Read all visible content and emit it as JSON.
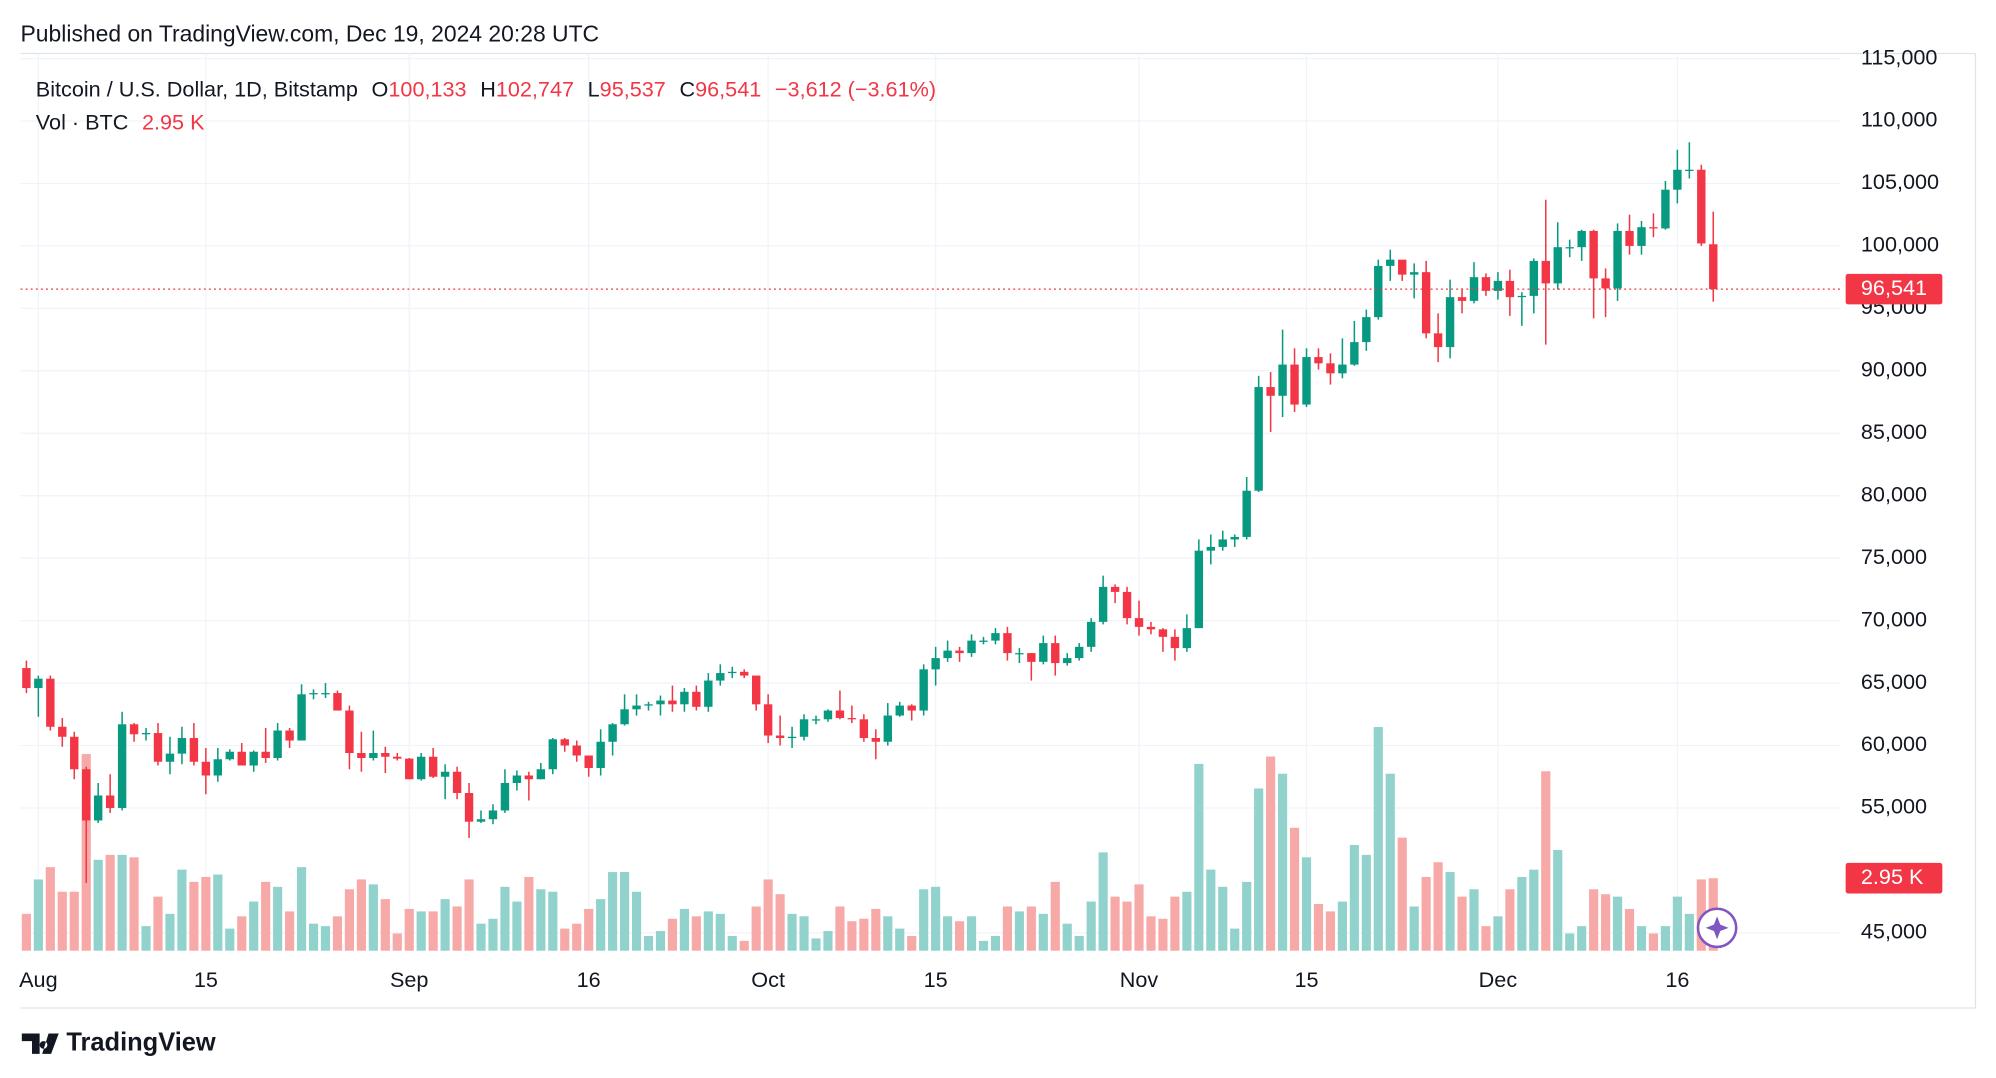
{
  "chart_data": {
    "type": "candlestick",
    "title": "Published on TradingView.com, Dec 19, 2024 20:28 UTC",
    "brand": "TradingView",
    "legend": {
      "symbol": "Bitcoin / U.S. Dollar, 1D, Bitstamp",
      "fields": [
        {
          "label": "O",
          "value": "100,133"
        },
        {
          "label": "H",
          "value": "102,747"
        },
        {
          "label": "L",
          "value": "95,537"
        },
        {
          "label": "C",
          "value": "96,541"
        }
      ],
      "change": "−3,612 (−3.61%)",
      "volume_title": "Vol · BTC",
      "volume_value": "2.95 K"
    },
    "up_color": "#089981",
    "down_color": "#f23645",
    "volume_up_color": "#92d2cc",
    "volume_down_color": "#f7a9a7",
    "grid": true,
    "categories": [
      null,
      "Aug",
      null,
      null,
      null,
      null,
      null,
      null,
      null,
      null,
      null,
      null,
      null,
      null,
      null,
      "15",
      null,
      null,
      null,
      null,
      null,
      null,
      null,
      null,
      null,
      null,
      null,
      null,
      null,
      null,
      null,
      null,
      "Sep",
      null,
      null,
      null,
      null,
      null,
      null,
      null,
      null,
      null,
      null,
      null,
      null,
      null,
      null,
      "16",
      null,
      null,
      null,
      null,
      null,
      null,
      null,
      null,
      null,
      null,
      null,
      null,
      null,
      null,
      "Oct",
      null,
      null,
      null,
      null,
      null,
      null,
      null,
      null,
      null,
      null,
      null,
      null,
      null,
      "15",
      null,
      null,
      null,
      null,
      null,
      null,
      null,
      null,
      null,
      null,
      null,
      null,
      null,
      null,
      null,
      null,
      "Nov",
      null,
      null,
      null,
      null,
      null,
      null,
      null,
      null,
      null,
      null,
      null,
      null,
      null,
      "15",
      null,
      null,
      null,
      null,
      null,
      null,
      null,
      null,
      null,
      null,
      null,
      null,
      null,
      null,
      null,
      "Dec",
      null,
      null,
      null,
      null,
      null,
      null,
      null,
      null,
      null,
      null,
      null,
      null,
      null,
      null,
      "16",
      null,
      null,
      null
    ],
    "open": [
      66200,
      64600,
      65350,
      61500,
      60700,
      58100,
      54000,
      56000,
      55000,
      61700,
      60900,
      61000,
      58700,
      59350,
      60600,
      58700,
      57600,
      58900,
      59500,
      58400,
      59500,
      59000,
      61200,
      60400,
      64100,
      64200,
      64200,
      62800,
      59400,
      59000,
      59400,
      59100,
      58950,
      57300,
      59100,
      57500,
      57900,
      56200,
      53900,
      54100,
      54800,
      57000,
      57600,
      57300,
      58100,
      60500,
      60000,
      59200,
      58200,
      60300,
      61700,
      62900,
      63200,
      63300,
      63600,
      63300,
      64300,
      63100,
      65200,
      65800,
      65900,
      65600,
      63300,
      60800,
      60600,
      60700,
      62100,
      62100,
      62800,
      62200,
      62100,
      60600,
      60300,
      62400,
      63200,
      62800,
      66100,
      67000,
      67600,
      67400,
      68400,
      68400,
      69000,
      67400,
      67400,
      66700,
      68200,
      66600,
      67000,
      67900,
      69900,
      72700,
      72300,
      70200,
      69500,
      69300,
      68700,
      67800,
      69400,
      75600,
      75900,
      76500,
      76700,
      80400,
      88700,
      88000,
      90500,
      87300,
      91100,
      90600,
      89800,
      90500,
      92300,
      94300,
      98400,
      98900,
      97700,
      97900,
      93000,
      91900,
      95900,
      95600,
      97500,
      96400,
      97200,
      95900,
      96000,
      98800,
      97000,
      99900,
      99900,
      101200,
      97400,
      96600,
      101200,
      100000,
      101500,
      101400,
      104500,
      106100,
      106100,
      100133
    ],
    "high": [
      66800,
      65600,
      65600,
      62200,
      61100,
      58300,
      57000,
      57700,
      62700,
      61800,
      61400,
      61800,
      60700,
      61500,
      61800,
      59800,
      59800,
      59700,
      60200,
      59600,
      61400,
      61800,
      61400,
      64900,
      64500,
      65000,
      64400,
      63200,
      61100,
      61200,
      59900,
      59400,
      59000,
      59400,
      59800,
      58500,
      58300,
      57000,
      54800,
      55300,
      58100,
      58000,
      57900,
      58600,
      60600,
      60600,
      60400,
      59200,
      61300,
      61800,
      64100,
      64100,
      63500,
      64000,
      64800,
      64600,
      64800,
      65800,
      66500,
      66300,
      66100,
      65600,
      64100,
      62400,
      61500,
      62500,
      62400,
      62900,
      64400,
      63200,
      62500,
      61300,
      63400,
      63500,
      63300,
      66500,
      67900,
      68400,
      67900,
      68900,
      68700,
      69400,
      69500,
      67800,
      67400,
      68800,
      68800,
      67400,
      68200,
      70200,
      73600,
      72900,
      72700,
      71600,
      69900,
      69400,
      69300,
      70500,
      76500,
      76900,
      77200,
      76900,
      81500,
      89600,
      89900,
      93300,
      91800,
      91800,
      91800,
      91400,
      92600,
      94000,
      94900,
      98900,
      99700,
      98800,
      98600,
      98800,
      94600,
      97300,
      96600,
      98700,
      97800,
      97900,
      98100,
      96300,
      99000,
      103700,
      101900,
      100500,
      101300,
      101300,
      98200,
      101800,
      102500,
      102000,
      102600,
      105200,
      107700,
      108300,
      106500,
      102747
    ],
    "low": [
      64200,
      62300,
      61200,
      59900,
      57300,
      49000,
      53800,
      54600,
      54800,
      60300,
      60400,
      58400,
      57700,
      58500,
      58400,
      56100,
      57100,
      58800,
      58400,
      57900,
      58600,
      58800,
      59800,
      60400,
      63700,
      63800,
      62800,
      58100,
      57900,
      58800,
      57800,
      58800,
      57300,
      57200,
      57400,
      55700,
      55700,
      52600,
      53800,
      53700,
      54600,
      56400,
      55600,
      57300,
      57700,
      59500,
      58700,
      57500,
      57600,
      59200,
      61600,
      62400,
      62800,
      62400,
      62700,
      62700,
      62800,
      62700,
      64800,
      65400,
      65400,
      62800,
      60200,
      60000,
      59800,
      60400,
      61700,
      61900,
      62100,
      61800,
      60300,
      58900,
      60000,
      62300,
      62000,
      62400,
      64800,
      66700,
      66700,
      67100,
      68100,
      68100,
      66800,
      66600,
      65200,
      66500,
      65600,
      66400,
      66800,
      67500,
      69700,
      71400,
      69700,
      68800,
      68900,
      67500,
      66800,
      67500,
      69400,
      74500,
      75600,
      75900,
      76500,
      80300,
      85100,
      86300,
      86700,
      87100,
      90100,
      88900,
      89400,
      90400,
      91600,
      94100,
      97200,
      97200,
      95800,
      92600,
      90700,
      91000,
      94600,
      95400,
      96000,
      95700,
      94400,
      93600,
      94600,
      92100,
      96500,
      99100,
      98800,
      94200,
      94300,
      95600,
      99300,
      99300,
      100700,
      101300,
      103400,
      105400,
      100000,
      95537
    ],
    "close": [
      64600,
      65350,
      61500,
      60700,
      58100,
      54000,
      56000,
      55000,
      61700,
      60900,
      61000,
      58700,
      59350,
      60600,
      58700,
      57600,
      58900,
      59500,
      58400,
      59500,
      59000,
      61200,
      60400,
      64100,
      64200,
      64200,
      62800,
      59400,
      59000,
      59400,
      59100,
      58950,
      57300,
      59100,
      57500,
      57900,
      56200,
      53900,
      54100,
      54800,
      57000,
      57600,
      57300,
      58100,
      60500,
      60000,
      59200,
      58200,
      60300,
      61700,
      62900,
      63200,
      63300,
      63600,
      63300,
      64300,
      63100,
      65200,
      65800,
      65900,
      65600,
      63300,
      60800,
      60600,
      60700,
      62100,
      62100,
      62800,
      62200,
      62100,
      60600,
      60300,
      62400,
      63200,
      62800,
      66100,
      67000,
      67600,
      67400,
      68400,
      68400,
      69000,
      67400,
      67400,
      66700,
      68200,
      66600,
      67000,
      67900,
      69900,
      72700,
      72300,
      70200,
      69500,
      69300,
      68700,
      67800,
      69400,
      75600,
      75900,
      76500,
      76700,
      80400,
      88700,
      88000,
      90500,
      87300,
      91100,
      90600,
      89800,
      90500,
      92300,
      94300,
      98400,
      98900,
      97700,
      97900,
      93000,
      91900,
      95900,
      95600,
      97500,
      96400,
      97200,
      95900,
      96000,
      98800,
      97000,
      99900,
      99900,
      101200,
      97400,
      96600,
      101200,
      100000,
      101500,
      101400,
      104500,
      106100,
      106100,
      100200,
      96541
    ],
    "volume": [
      1500,
      2900,
      3400,
      2400,
      2400,
      8000,
      3700,
      3900,
      3900,
      3800,
      1000,
      2200,
      1500,
      3300,
      2800,
      3000,
      3100,
      900,
      1400,
      2000,
      2800,
      2600,
      1600,
      3400,
      1100,
      1000,
      1400,
      2500,
      2900,
      2700,
      2100,
      700,
      1700,
      1600,
      1600,
      2100,
      1800,
      2900,
      1100,
      1300,
      2600,
      2000,
      3000,
      2500,
      2400,
      900,
      1100,
      1700,
      2100,
      3200,
      3200,
      2400,
      600,
      800,
      1300,
      1700,
      1400,
      1600,
      1500,
      600,
      400,
      1800,
      2900,
      2300,
      1500,
      1400,
      500,
      800,
      1800,
      1200,
      1300,
      1700,
      1400,
      900,
      600,
      2500,
      2600,
      1400,
      1200,
      1400,
      400,
      600,
      1800,
      1600,
      1800,
      1500,
      2800,
      1100,
      600,
      2000,
      4000,
      2200,
      2000,
      2700,
      1400,
      1300,
      2200,
      2400,
      7600,
      3300,
      2600,
      900,
      2800,
      6600,
      7900,
      7200,
      5000,
      3800,
      1900,
      1600,
      2000,
      4300,
      3900,
      9100,
      7200,
      4600,
      1800,
      3000,
      3600,
      3200,
      2200,
      2500,
      1000,
      1400,
      2500,
      3000,
      3300,
      7300,
      4100,
      700,
      1000,
      2500,
      2300,
      2200,
      1700,
      1000,
      700,
      1000,
      2200,
      1500,
      2900,
      2950
    ],
    "ylim": [
      43570,
      115410
    ],
    "yticks": [
      {
        "value": 45000,
        "label": "45,000"
      },
      {
        "value": 55000,
        "label": "55,000"
      },
      {
        "value": 60000,
        "label": "60,000"
      },
      {
        "value": 65000,
        "label": "65,000"
      },
      {
        "value": 70000,
        "label": "70,000"
      },
      {
        "value": 75000,
        "label": "75,000"
      },
      {
        "value": 80000,
        "label": "80,000"
      },
      {
        "value": 85000,
        "label": "85,000"
      },
      {
        "value": 90000,
        "label": "90,000"
      },
      {
        "value": 95000,
        "label": "95,000"
      },
      {
        "value": 100000,
        "label": "100,000"
      },
      {
        "value": 105000,
        "label": "105,000"
      },
      {
        "value": 110000,
        "label": "110,000"
      },
      {
        "value": 115000,
        "label": "115,000"
      }
    ],
    "y2lim": [
      0,
      36500
    ]
  }
}
